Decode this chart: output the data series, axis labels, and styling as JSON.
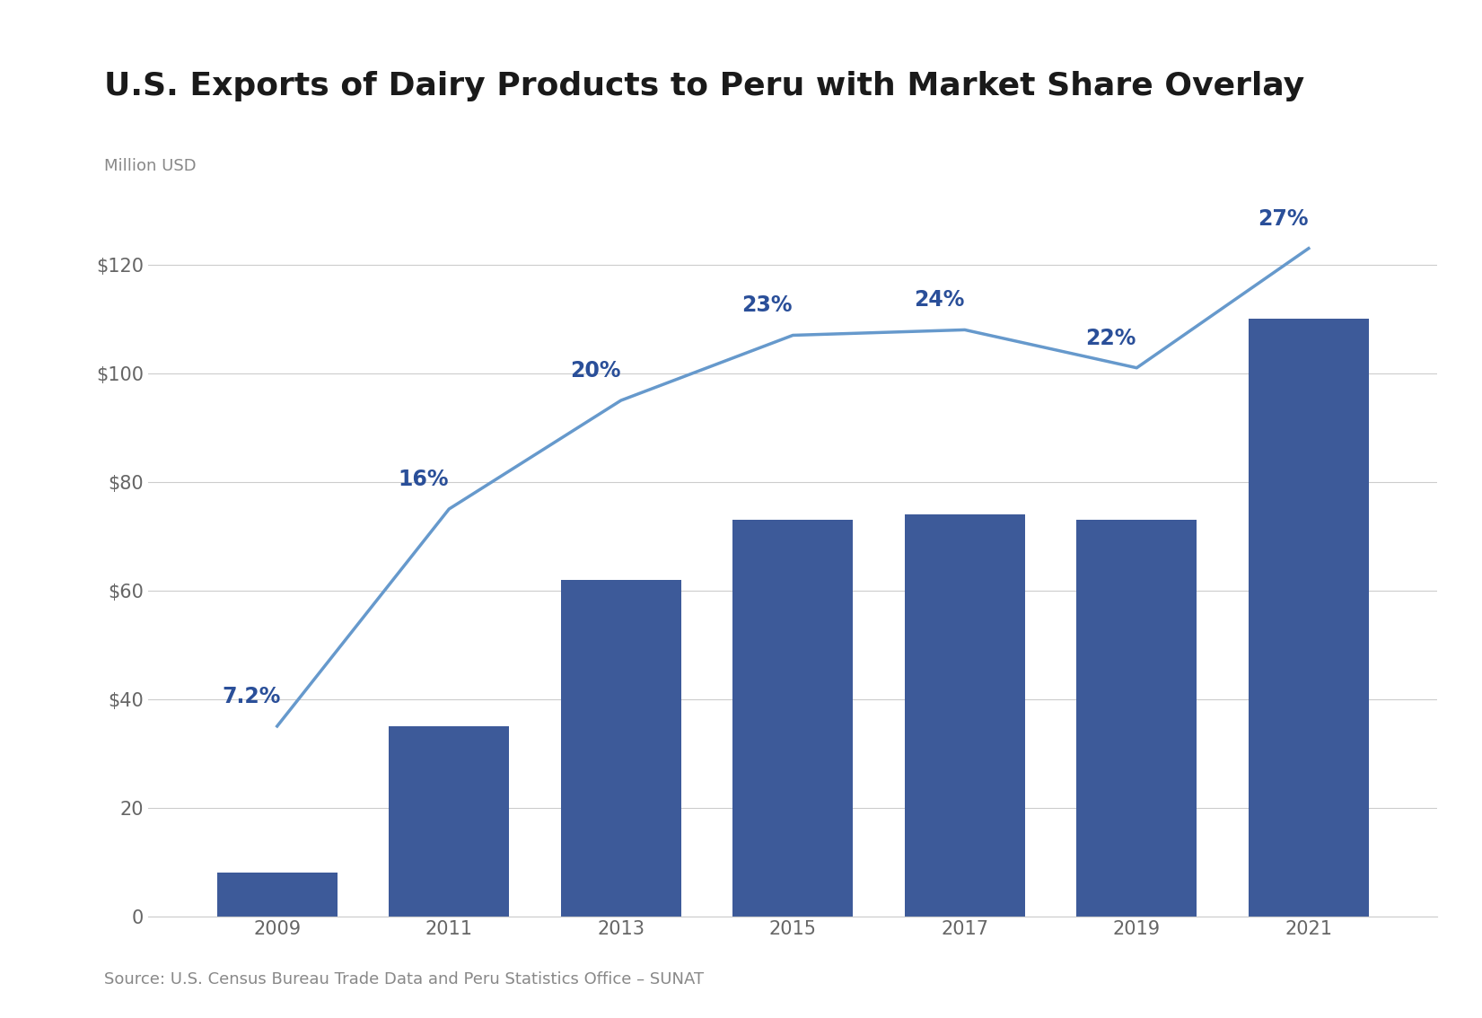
{
  "title": "U.S. Exports of Dairy Products to Peru with Market Share Overlay",
  "ylabel": "Million USD",
  "source": "Source: U.S. Census Bureau Trade Data and Peru Statistics Office – SUNAT",
  "years": [
    2009,
    2011,
    2013,
    2015,
    2017,
    2019,
    2021
  ],
  "bar_values": [
    8,
    35,
    62,
    73,
    74,
    73,
    110
  ],
  "line_values": [
    35,
    75,
    95,
    107,
    108,
    101,
    123
  ],
  "market_share_labels": [
    "7.2%",
    "16%",
    "20%",
    "23%",
    "24%",
    "22%",
    "27%"
  ],
  "bar_color": "#3D5A99",
  "line_color": "#6699CC",
  "label_color": "#2A4F99",
  "title_color": "#1a1a1a",
  "axis_label_color": "#888888",
  "tick_color": "#666666",
  "grid_color": "#cccccc",
  "background_color": "#ffffff",
  "ylim": [
    0,
    135
  ],
  "yticks": [
    0,
    20,
    40,
    60,
    80,
    100,
    120
  ],
  "ytick_labels": [
    "0",
    "20",
    "$40",
    "$60",
    "$80",
    "$100",
    "$120"
  ],
  "title_fontsize": 26,
  "ylabel_fontsize": 13,
  "tick_fontsize": 15,
  "label_fontsize": 17,
  "source_fontsize": 13,
  "bar_width": 1.4
}
